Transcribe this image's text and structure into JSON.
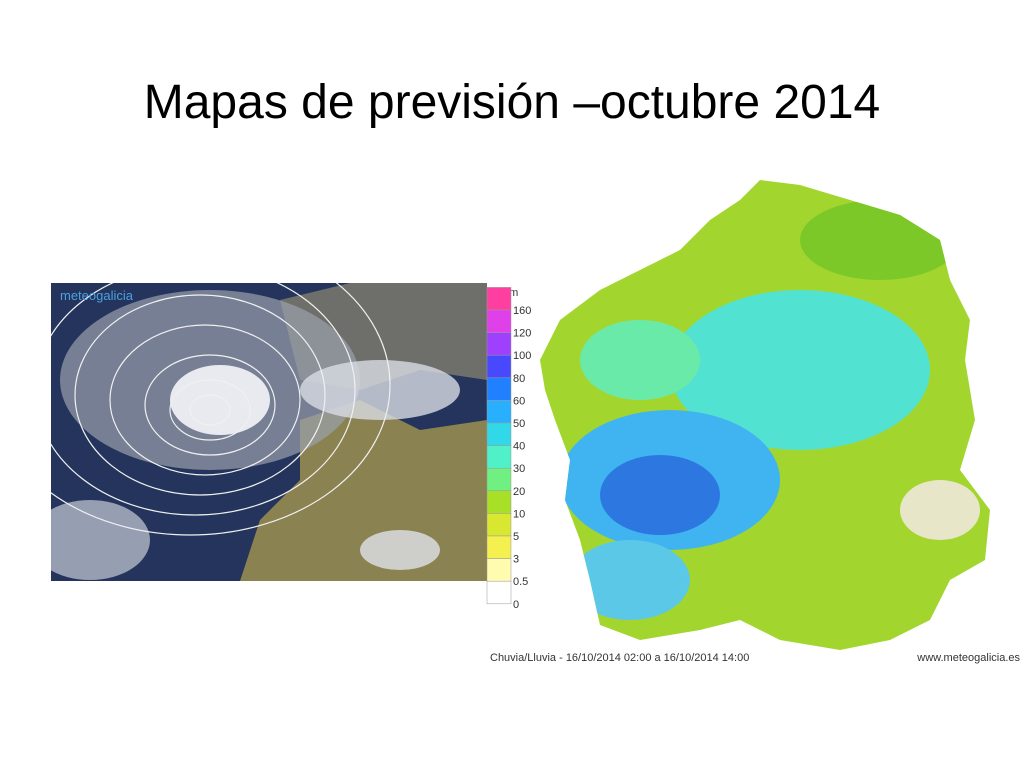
{
  "title": "Mapas de previsión –octubre 2014",
  "left_map": {
    "logo": "meteogalicia"
  },
  "legend": {
    "unit": "mm",
    "items": [
      {
        "label": "160",
        "color": "#ff3f9f"
      },
      {
        "label": "120",
        "color": "#e040e8"
      },
      {
        "label": "100",
        "color": "#a040ff"
      },
      {
        "label": "80",
        "color": "#4848ff"
      },
      {
        "label": "60",
        "color": "#2080ff"
      },
      {
        "label": "50",
        "color": "#28b0ff"
      },
      {
        "label": "40",
        "color": "#30d8e8"
      },
      {
        "label": "30",
        "color": "#50f0c8"
      },
      {
        "label": "20",
        "color": "#70f080"
      },
      {
        "label": "10",
        "color": "#a8e028"
      },
      {
        "label": "5",
        "color": "#d8e830"
      },
      {
        "label": "3",
        "color": "#f4f050"
      },
      {
        "label": "0.5",
        "color": "#fffcb0"
      },
      {
        "label": "0",
        "color": "#ffffff"
      }
    ]
  },
  "right_map": {
    "caption": "Chuvia/Lluvia - 16/10/2014 02:00 a 16/10/2014 14:00",
    "source": "www.meteogalicia.es"
  }
}
